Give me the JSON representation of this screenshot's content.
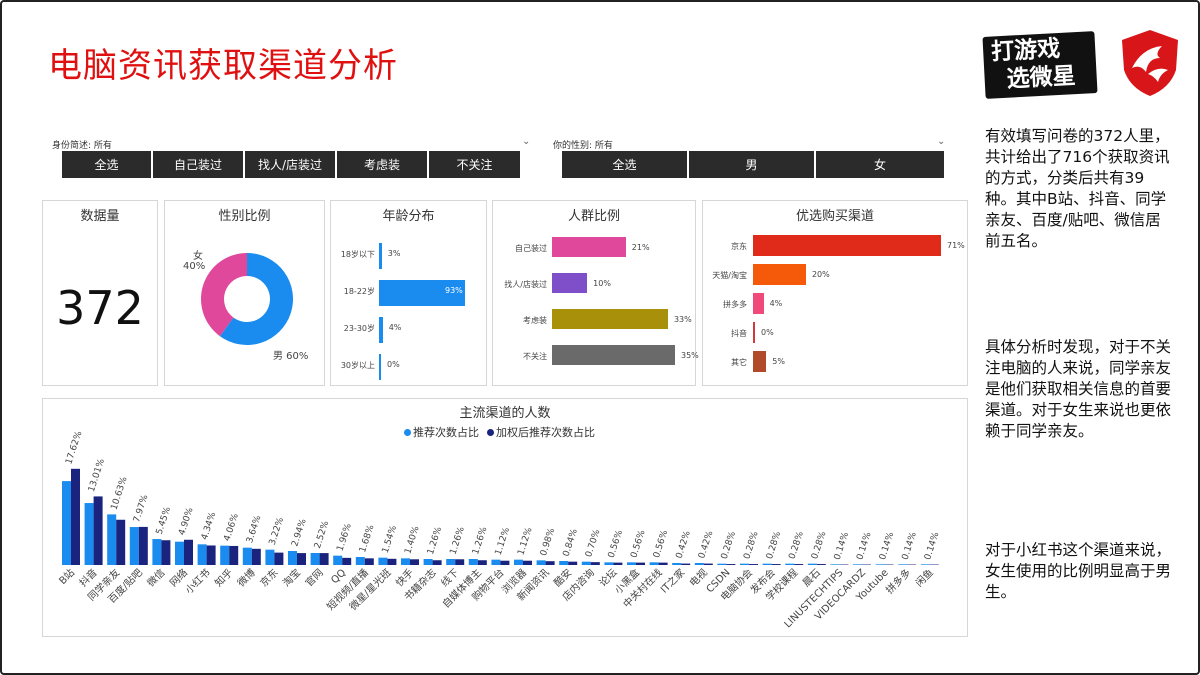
{
  "title": "电脑资讯获取渠道分析",
  "logo": {
    "line1": "打游戏",
    "line2": "选微星"
  },
  "slicer_identity": {
    "label": "身份简述: 所有",
    "buttons": [
      "全选",
      "自己装过",
      "找人/店装过",
      "考虑装",
      "不关注"
    ]
  },
  "slicer_gender": {
    "label": "你的性别: 所有",
    "buttons": [
      "全选",
      "男",
      "女"
    ]
  },
  "count_card": {
    "title": "数据量",
    "value": "372"
  },
  "gender_card": {
    "title": "性别比例",
    "female_label": "女",
    "female_pct": "40%",
    "male_label": "男 60%",
    "female_value": 40,
    "male_value": 60,
    "colors": {
      "female": "#e0489c",
      "male": "#1a8cf0"
    }
  },
  "age_card": {
    "title": "年龄分布",
    "items": [
      {
        "label": "18岁以下",
        "value": 3,
        "text": "3%"
      },
      {
        "label": "18-22岁",
        "value": 93,
        "text": "93%"
      },
      {
        "label": "23-30岁",
        "value": 4,
        "text": "4%"
      },
      {
        "label": "30岁以上",
        "value": 0,
        "text": "0%"
      }
    ],
    "color": "#1a8cf0"
  },
  "group_card": {
    "title": "人群比例",
    "items": [
      {
        "label": "自己装过",
        "value": 21,
        "text": "21%",
        "color": "#e0489c"
      },
      {
        "label": "找人/店装过",
        "value": 10,
        "text": "10%",
        "color": "#7f4fc9"
      },
      {
        "label": "考虑装",
        "value": 33,
        "text": "33%",
        "color": "#a8900a"
      },
      {
        "label": "不关注",
        "value": 35,
        "text": "35%",
        "color": "#6a6a6a"
      }
    ]
  },
  "channel_card": {
    "title": "优选购买渠道",
    "items": [
      {
        "label": "京东",
        "value": 71,
        "text": "71%",
        "color": "#e02a1a"
      },
      {
        "label": "天猫/淘宝",
        "value": 20,
        "text": "20%",
        "color": "#f55a0a"
      },
      {
        "label": "拼多多",
        "value": 4,
        "text": "4%",
        "color": "#f04a7a"
      },
      {
        "label": "抖音",
        "value": 0,
        "text": "0%",
        "color": "#d03a3a"
      },
      {
        "label": "其它",
        "value": 5,
        "text": "5%",
        "color": "#b04a2a"
      }
    ]
  },
  "side_text": {
    "p1": "有效填写问卷的372人里，共计给出了716个获取资讯的方式，分类后共有39种。其中B站、抖音、同学亲友、百度/贴吧、微信居前五名。",
    "p2": "具体分析时发现，对于不关注电脑的人来说，同学亲友是他们获取相关信息的首要渠道。对于女生来说也更依赖于同学亲友。",
    "p3": "对于小红书这个渠道来说，女生使用的比例明显高于男生。"
  },
  "chart_data": {
    "type": "bar",
    "title": "主流渠道的人数",
    "series": [
      {
        "name": "推荐次数占比",
        "color": "#1a8cf0",
        "values": [
          17.62,
          13.01,
          10.63,
          7.97,
          5.45,
          4.9,
          4.34,
          4.06,
          3.64,
          3.22,
          2.94,
          2.52,
          1.96,
          1.68,
          1.54,
          1.4,
          1.26,
          1.26,
          1.26,
          1.12,
          1.12,
          0.98,
          0.84,
          0.7,
          0.56,
          0.56,
          0.56,
          0.42,
          0.42,
          0.28,
          0.28,
          0.28,
          0.28,
          0.28,
          0.14,
          0.14,
          0.14,
          0.14,
          0.14
        ]
      },
      {
        "name": "加权后推荐次数占比",
        "color": "#1a237e",
        "values": [
          20.2,
          14.4,
          9.5,
          8.0,
          5.2,
          5.3,
          4.1,
          4.0,
          3.4,
          2.6,
          2.5,
          2.5,
          1.5,
          1.4,
          1.3,
          1.2,
          1.0,
          1.2,
          1.0,
          0.9,
          0.9,
          0.8,
          0.7,
          0.6,
          0.5,
          0.5,
          0.5,
          0.3,
          0.3,
          0.2,
          0.2,
          0.2,
          0.2,
          0.2,
          0.1,
          0.1,
          0.1,
          0.1,
          0.1
        ]
      }
    ],
    "categories": [
      "B站",
      "抖音",
      "同学亲友",
      "百度/贴吧",
      "微信",
      "网络",
      "小红书",
      "知乎",
      "微博",
      "京东",
      "淘宝",
      "官网",
      "QQ",
      "短视频/直播",
      "微星/星光班",
      "快手",
      "书籍杂志",
      "线下",
      "自媒体博主",
      "购物平台",
      "浏览器",
      "新闻资讯",
      "酷安",
      "店内咨询",
      "论坛",
      "小黑盒",
      "中关村在线",
      "IT之家",
      "电视",
      "CSDN",
      "电脑协会",
      "发布会",
      "学校课程",
      "晨石",
      "LINUSTECHTIPS",
      "VIDEOCARDZ",
      "Youtube",
      "拼多多",
      "闲鱼"
    ],
    "labels": [
      "17.62%",
      "13.01%",
      "10.63%",
      "7.97%",
      "5.45%",
      "4.90%",
      "4.34%",
      "4.06%",
      "3.64%",
      "3.22%",
      "2.94%",
      "2.52%",
      "1.96%",
      "1.68%",
      "1.54%",
      "1.40%",
      "1.26%",
      "1.26%",
      "1.26%",
      "1.12%",
      "1.12%",
      "0.98%",
      "0.84%",
      "0.70%",
      "0.56%",
      "0.56%",
      "0.56%",
      "0.42%",
      "0.42%",
      "0.28%",
      "0.28%",
      "0.28%",
      "0.28%",
      "0.28%",
      "0.14%",
      "0.14%",
      "0.14%",
      "0.14%",
      "0.14%"
    ],
    "ylim": [
      0,
      21
    ],
    "legend": "top-center"
  }
}
